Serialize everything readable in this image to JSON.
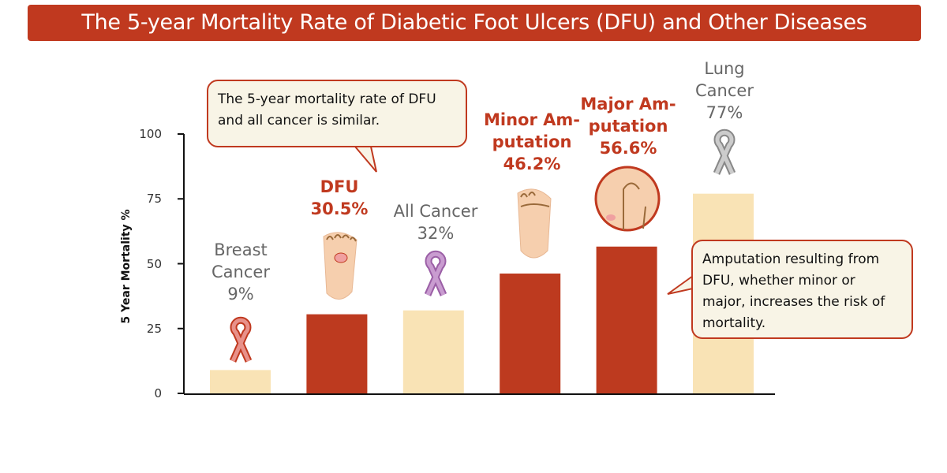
{
  "title": "The 5-year Mortality Rate of Diabetic Foot Ulcers (DFU) and Other Diseases",
  "colors": {
    "title_bg": "#c0391f",
    "highlight_bar": "#bd3a1f",
    "other_bar": "#f9e3b5",
    "highlight_text": "#c0391f",
    "other_text": "#666666"
  },
  "callouts": [
    {
      "text": "The 5-year mortality rate of DFU and all cancer is similar."
    },
    {
      "text": "Amputation resulting from DFU, whether minor or major, increases the risk of mortality."
    }
  ],
  "chart_data": {
    "type": "bar",
    "ylabel": "5 Year Mortality %",
    "ylim": [
      0,
      100
    ],
    "yticks": [
      "0",
      "25",
      "50",
      "75",
      "100"
    ],
    "grid": false,
    "categories": [
      "Breast Cancer",
      "DFU",
      "All Cancer",
      "Minor Amputation",
      "Major Amputation",
      "Lung Cancer"
    ],
    "values": [
      9,
      30.5,
      32,
      46.2,
      56.6,
      77
    ],
    "highlight": [
      false,
      true,
      false,
      true,
      true,
      false
    ],
    "labels": [
      {
        "line1": "Breast",
        "line2": "Cancer",
        "value": "9%",
        "icon": "pink-ribbon-icon"
      },
      {
        "line1": "DFU",
        "line2": "",
        "value": "30.5%",
        "icon": "foot-ulcer-icon"
      },
      {
        "line1": "All Cancer",
        "line2": "",
        "value": "32%",
        "icon": "lavender-ribbon-icon"
      },
      {
        "line1": "Minor Am-",
        "line2": "putation",
        "value": "46.2%",
        "icon": "toe-amputation-icon"
      },
      {
        "line1": "Major Am-",
        "line2": "putation",
        "value": "56.6%",
        "icon": "leg-amputation-icon"
      },
      {
        "line1": "Lung",
        "line2": "Cancer",
        "value": "77%",
        "icon": "grey-ribbon-icon"
      }
    ]
  }
}
